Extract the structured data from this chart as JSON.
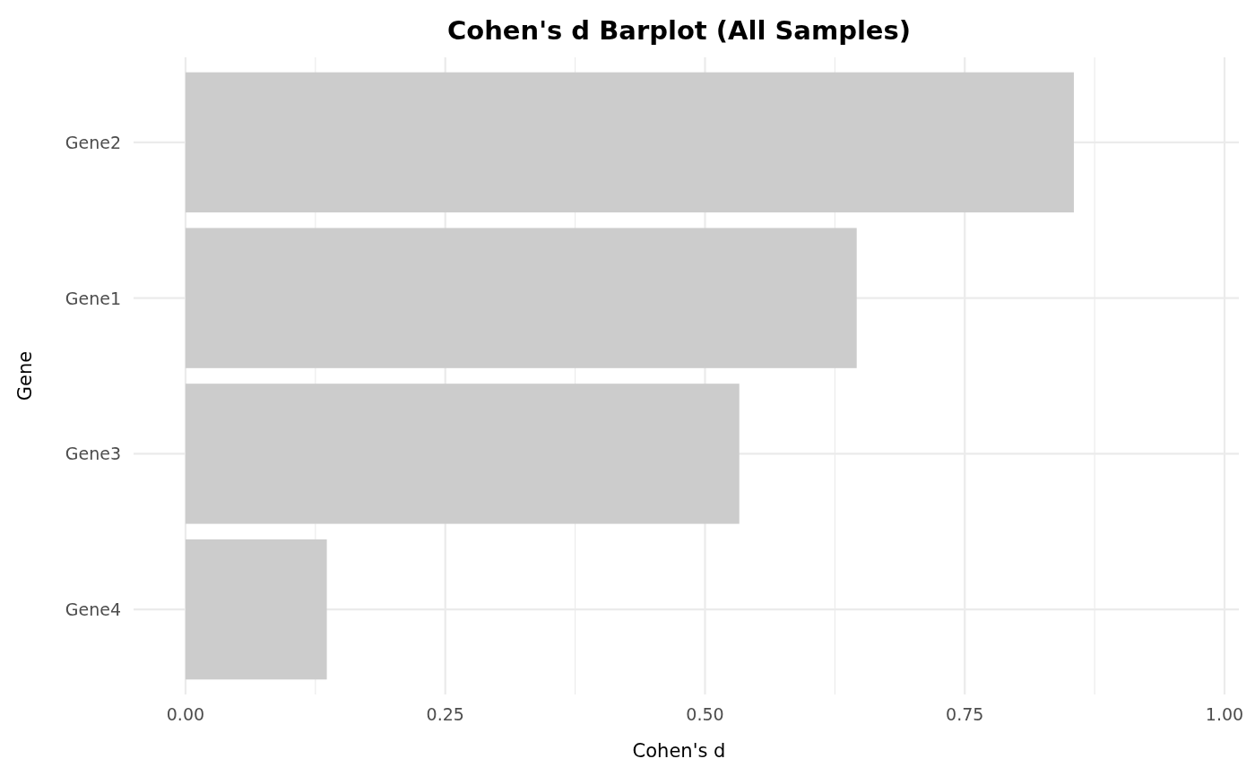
{
  "chart_data": {
    "type": "bar",
    "orientation": "horizontal",
    "title": "Cohen's d Barplot (All Samples)",
    "xlabel": "Cohen's d",
    "ylabel": "Gene",
    "categories": [
      "Gene2",
      "Gene1",
      "Gene3",
      "Gene4"
    ],
    "values": [
      0.855,
      0.646,
      0.533,
      0.136
    ],
    "color": "#cccccc",
    "xlim": [
      -0.05,
      1.0
    ],
    "xticks": [
      {
        "value": 0,
        "label": "0.00"
      },
      {
        "value": 0.125,
        "label": null
      },
      {
        "value": 0.25,
        "label": "0.25"
      },
      {
        "value": 0.375,
        "label": null
      },
      {
        "value": 0.5,
        "label": "0.50"
      },
      {
        "value": 0.625,
        "label": null
      },
      {
        "value": 0.75,
        "label": "0.75"
      },
      {
        "value": 0.875,
        "label": null
      },
      {
        "value": 1,
        "label": "1.00"
      }
    ],
    "grid": true
  }
}
